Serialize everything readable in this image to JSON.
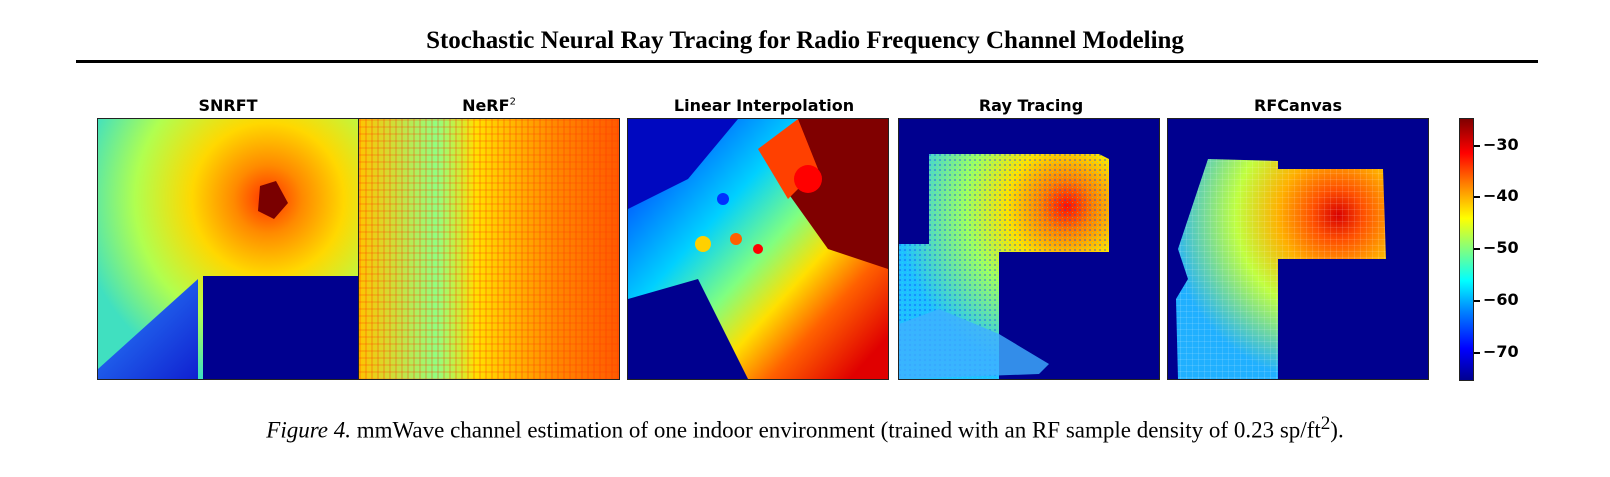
{
  "header": {
    "running_title": "Stochastic Neural Ray Tracing for Radio Frequency Channel Modeling"
  },
  "figure": {
    "panels": [
      {
        "title": "SNRFT"
      },
      {
        "title": "NeRF",
        "title_sup": "2"
      },
      {
        "title": "Linear Interpolation"
      },
      {
        "title": "Ray Tracing"
      },
      {
        "title": "RFCanvas"
      }
    ],
    "colorbar": {
      "colormap": "jet",
      "range": [
        -75,
        -25
      ],
      "ticks": [
        "−30",
        "−40",
        "−50",
        "−60",
        "−70"
      ]
    }
  },
  "caption": {
    "label": "Figure 4.",
    "text": " mmWave channel estimation of one indoor environment (trained with an RF sample density of 0.23 sp/ft",
    "sup": "2",
    "end": ")."
  }
}
